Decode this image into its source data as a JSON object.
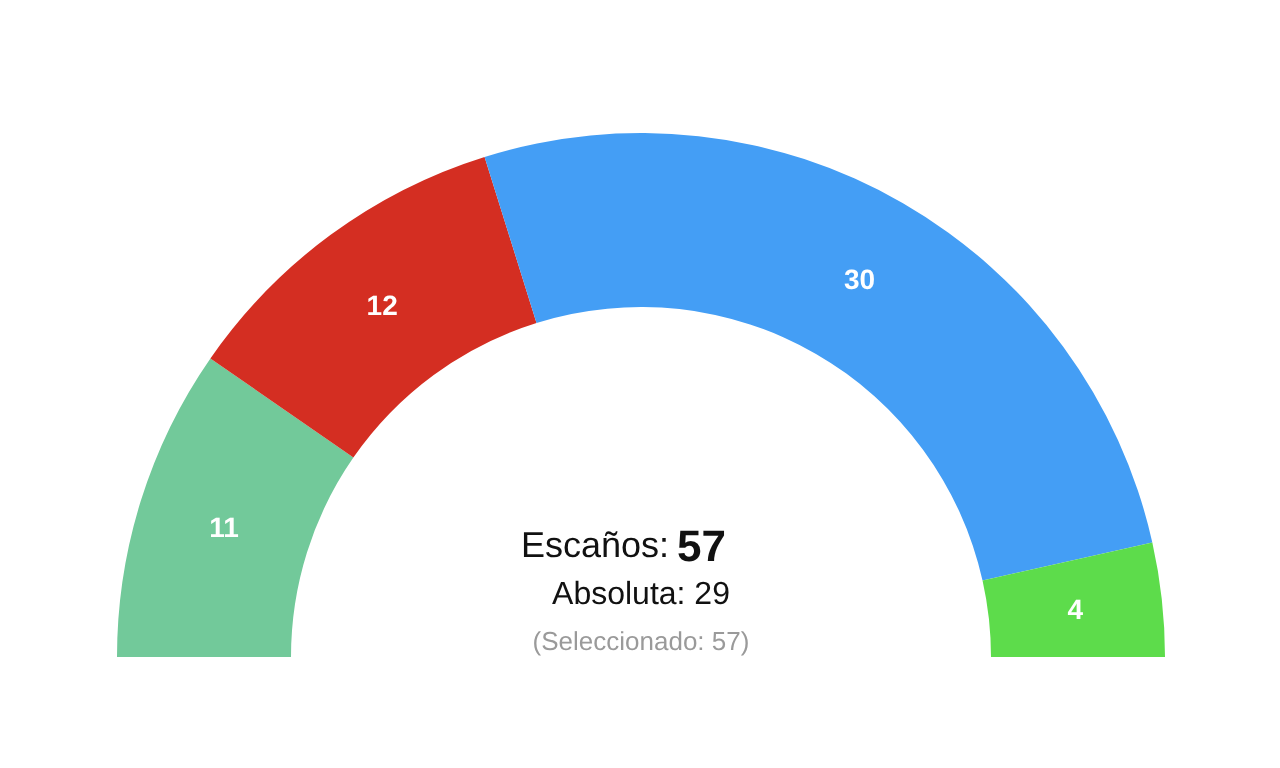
{
  "chart_data": {
    "type": "donut",
    "categories": [
      null,
      null,
      null,
      null
    ],
    "values": [
      11,
      12,
      30,
      4
    ],
    "colors": [
      "#72c99a",
      "#d42e22",
      "#449ef5",
      "#5ddc4b"
    ],
    "data_labels": true,
    "annotations": [
      "Escaños: 57",
      "Absoluta: 29",
      "(Seleccionado: 57)"
    ]
  }
}
